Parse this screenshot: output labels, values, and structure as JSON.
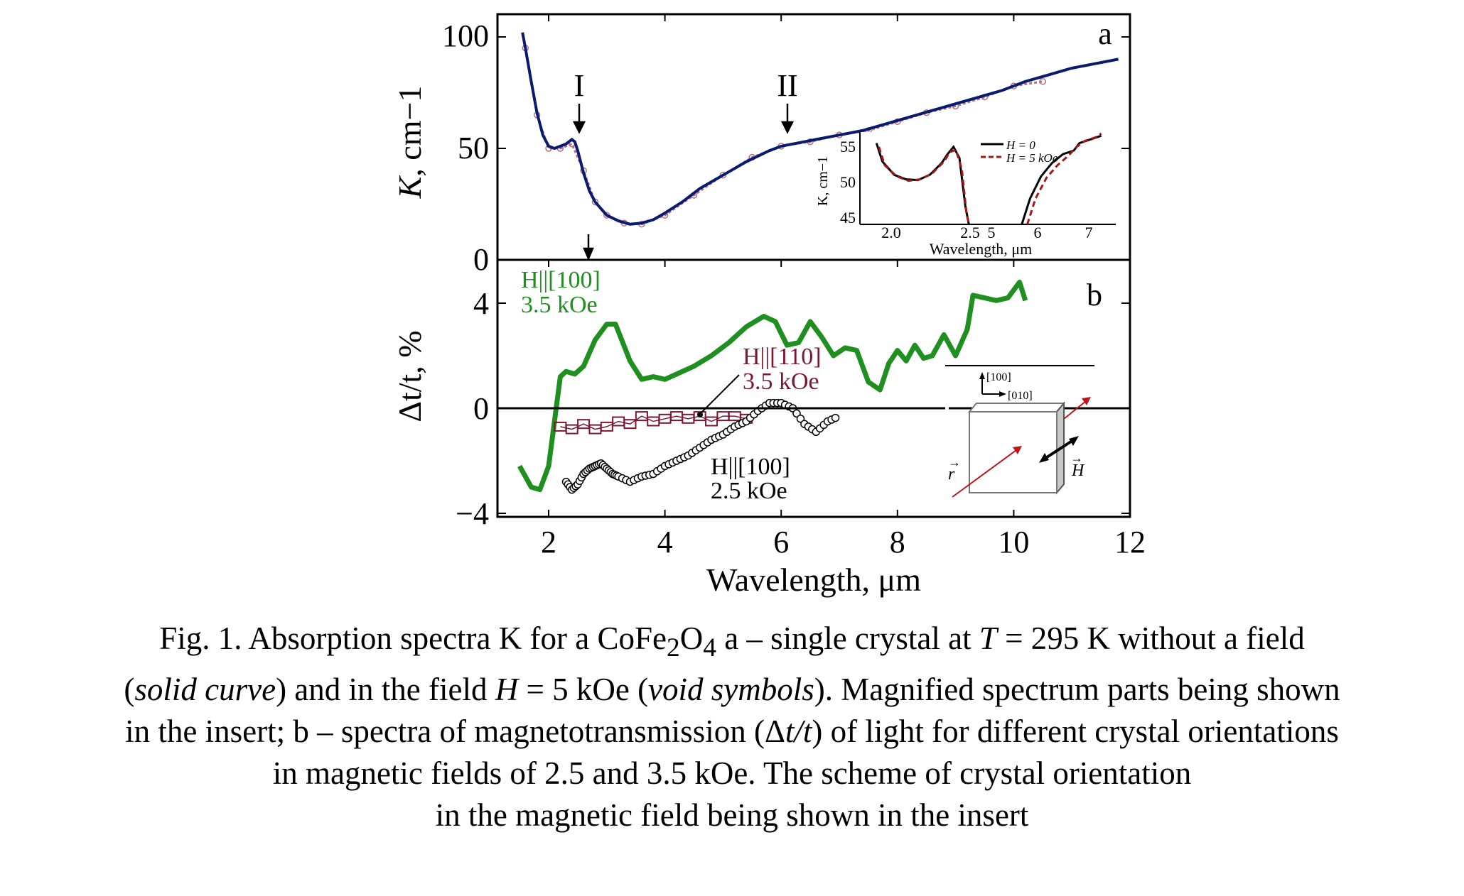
{
  "colors": {
    "axis": "#000000",
    "absorption": "#0a1a6e",
    "absorption_h": "#b07080",
    "green": "#1f8f1f",
    "maroon": "#7b1830",
    "open_black": "#000000",
    "inset_dash": "#a01818",
    "arrow_red": "#c0141c"
  },
  "chart_data": [
    {
      "panel": "a",
      "type": "line",
      "xlabel": "",
      "ylabel": "K, cm−1",
      "xlim": [
        1.0,
        12.0
      ],
      "ylim": [
        0,
        110
      ],
      "yticks": [
        "0",
        "50",
        "100"
      ],
      "grid": false,
      "annotations": [
        {
          "text": "I",
          "x": 2.45,
          "y": 53
        },
        {
          "text": "II",
          "x": 6.05,
          "y": 52
        }
      ],
      "series": [
        {
          "style": "solid",
          "x": [
            1.55,
            1.6,
            1.7,
            1.8,
            1.9,
            2.0,
            2.1,
            2.2,
            2.3,
            2.4,
            2.45,
            2.5,
            2.6,
            2.7,
            2.8,
            2.9,
            3.0,
            3.2,
            3.4,
            3.6,
            3.8,
            4.0,
            4.3,
            4.6,
            5.0,
            5.4,
            5.8,
            6.0,
            6.3,
            6.6,
            7.0,
            7.4,
            7.8,
            8.2,
            8.6,
            9.0,
            9.4,
            9.8,
            10.2,
            10.6,
            11.0,
            11.4,
            11.8
          ],
          "y": [
            102,
            95,
            80,
            66,
            56,
            51,
            50,
            51,
            52,
            54,
            53,
            49,
            39,
            31,
            26,
            23,
            20,
            17.5,
            16,
            16.5,
            18,
            21,
            26,
            32,
            38,
            44,
            49,
            51,
            52.5,
            54,
            56,
            58,
            61,
            64,
            67,
            70,
            73,
            76,
            80,
            83,
            86,
            88,
            90
          ]
        },
        {
          "style": "open-symbols",
          "x": [
            1.6,
            1.8,
            2.0,
            2.2,
            2.4,
            2.6,
            2.8,
            3.0,
            3.3,
            3.6,
            4.0,
            4.5,
            5.0,
            5.5,
            6.0,
            6.5,
            7.0,
            7.5,
            8.0,
            8.5,
            9.0,
            9.5,
            10.0,
            10.5
          ],
          "y": [
            95,
            65,
            50,
            50,
            52,
            40,
            26,
            20,
            16.5,
            16,
            20,
            29,
            38,
            46,
            51,
            53,
            56,
            58,
            62,
            66,
            69,
            73,
            78,
            80
          ]
        }
      ],
      "inset": {
        "xlabel": "Wavelength, μm",
        "ylabel": "K, cm−1",
        "yticks": [
          "45",
          "50",
          "55"
        ],
        "ylim": [
          44.5,
          57
        ],
        "xticks_left": [
          "2.0",
          "2.5"
        ],
        "xticks_right": [
          "5",
          "6",
          "7"
        ],
        "legend": [
          "H = 0",
          "H = 5 kOe"
        ],
        "left": {
          "xlim": [
            1.7,
            2.6
          ],
          "h0": [
            [
              1.75,
              55.5
            ],
            [
              1.8,
              53
            ],
            [
              1.9,
              51.2
            ],
            [
              2.0,
              50.6
            ],
            [
              2.1,
              50.5
            ],
            [
              2.2,
              51.2
            ],
            [
              2.3,
              52.8
            ],
            [
              2.35,
              54
            ],
            [
              2.4,
              55
            ],
            [
              2.45,
              53.5
            ],
            [
              2.5,
              47
            ],
            [
              2.53,
              44.5
            ]
          ],
          "h5": [
            [
              1.77,
              55
            ],
            [
              1.82,
              52.5
            ],
            [
              1.92,
              51
            ],
            [
              2.02,
              50.4
            ],
            [
              2.12,
              50.6
            ],
            [
              2.22,
              51.4
            ],
            [
              2.32,
              53
            ],
            [
              2.37,
              54.3
            ],
            [
              2.42,
              54.6
            ],
            [
              2.47,
              52
            ],
            [
              2.51,
              46
            ],
            [
              2.53,
              44.5
            ]
          ]
        },
        "right": {
          "xlim": [
            5.0,
            7.4
          ],
          "h0": [
            [
              5.75,
              44.5
            ],
            [
              5.9,
              48
            ],
            [
              6.1,
              51
            ],
            [
              6.3,
              52.8
            ],
            [
              6.5,
              54
            ],
            [
              6.7,
              54.5
            ],
            [
              6.8,
              55.5
            ],
            [
              7.0,
              56
            ],
            [
              7.2,
              56.5
            ]
          ],
          "h5": [
            [
              5.85,
              44.5
            ],
            [
              6.0,
              48
            ],
            [
              6.2,
              50.8
            ],
            [
              6.4,
              52.5
            ],
            [
              6.6,
              53.8
            ],
            [
              6.75,
              55
            ],
            [
              6.9,
              55.8
            ],
            [
              7.1,
              56.3
            ],
            [
              7.2,
              56.8
            ]
          ]
        }
      }
    },
    {
      "panel": "b",
      "type": "line",
      "xlabel": "Wavelength, μm",
      "ylabel": "Δt/t, %",
      "xlim": [
        1.0,
        12.0
      ],
      "ylim": [
        -4.5,
        5.7
      ],
      "xticks": [
        "2",
        "4",
        "6",
        "8",
        "10",
        "12"
      ],
      "yticks": [
        "−4",
        "0",
        "4"
      ],
      "grid": false,
      "series": [
        {
          "name": "H||[100] 3.5 kOe",
          "x": [
            1.5,
            1.7,
            1.85,
            2.0,
            2.1,
            2.2,
            2.3,
            2.45,
            2.6,
            2.8,
            3.0,
            3.15,
            3.4,
            3.6,
            3.8,
            4.0,
            4.2,
            4.5,
            4.8,
            5.1,
            5.4,
            5.7,
            5.9,
            6.1,
            6.3,
            6.5,
            6.7,
            6.9,
            7.1,
            7.3,
            7.5,
            7.7,
            7.85,
            8.0,
            8.15,
            8.3,
            8.45,
            8.6,
            8.8,
            9.0,
            9.2,
            9.3,
            9.5,
            9.7,
            9.9,
            10.1,
            10.2
          ],
          "y": [
            -2.2,
            -3.0,
            -3.1,
            -2.2,
            -0.5,
            1.2,
            1.4,
            1.3,
            1.6,
            2.6,
            3.2,
            3.2,
            1.8,
            1.1,
            1.2,
            1.1,
            1.3,
            1.6,
            2.0,
            2.5,
            3.1,
            3.5,
            3.3,
            2.4,
            2.5,
            3.3,
            2.7,
            2.0,
            2.3,
            2.2,
            1.0,
            0.7,
            1.7,
            2.2,
            1.8,
            2.4,
            1.9,
            2.0,
            2.8,
            2.0,
            3.0,
            4.3,
            4.2,
            4.1,
            4.2,
            4.8,
            4.1
          ]
        },
        {
          "name": "H||[110] 3.5 kOe",
          "x": [
            2.2,
            2.4,
            2.6,
            2.8,
            3.0,
            3.2,
            3.4,
            3.6,
            3.8,
            4.0,
            4.2,
            4.4,
            4.6,
            4.8,
            5.0,
            5.2,
            5.4
          ],
          "y": [
            -0.7,
            -0.8,
            -0.6,
            -0.8,
            -0.7,
            -0.5,
            -0.6,
            -0.3,
            -0.5,
            -0.4,
            -0.3,
            -0.4,
            -0.3,
            -0.5,
            -0.3,
            -0.3,
            -0.4
          ]
        },
        {
          "name": "H||[100] 2.5 kOe",
          "x": [
            2.3,
            2.4,
            2.5,
            2.6,
            2.7,
            2.8,
            2.9,
            3.0,
            3.1,
            3.2,
            3.4,
            3.6,
            3.8,
            4.0,
            4.2,
            4.4,
            4.6,
            4.8,
            5.0,
            5.2,
            5.4,
            5.6,
            5.8,
            6.0,
            6.2,
            6.4,
            6.6,
            6.8,
            7.0
          ],
          "y": [
            -2.8,
            -3.1,
            -2.9,
            -2.5,
            -2.3,
            -2.2,
            -2.1,
            -2.3,
            -2.5,
            -2.6,
            -2.8,
            -2.6,
            -2.5,
            -2.2,
            -2.0,
            -1.8,
            -1.5,
            -1.2,
            -1.0,
            -0.7,
            -0.5,
            -0.1,
            0.2,
            0.2,
            0.0,
            -0.6,
            -0.9,
            -0.5,
            -0.3
          ]
        }
      ],
      "annotations": [
        {
          "text": "b"
        }
      ],
      "scheme": {
        "axis_up": "[100]",
        "axis_right": "[010]",
        "label_r": "r",
        "label_H": "H"
      }
    }
  ],
  "panel_labels": {
    "a": "a",
    "b": "b",
    "peak1": "I",
    "peak2": "II"
  },
  "legend_b": {
    "g1": "H||[100]",
    "g2": "3.5 kOe",
    "m1": "H||[110]",
    "m2": "3.5 kOe",
    "k1": "H||[100]",
    "k2": "2.5 kOe"
  },
  "caption": {
    "l1a": "Fig. 1. Absorption spectra K for a CoFe",
    "l1b": "2",
    "l1c": "O",
    "l1d": "4",
    "l1e": " a –  single crystal at ",
    "l1f": "T",
    "l1g": " = 295 K without a field",
    "l2a": "(",
    "l2b": "solid curve",
    "l2c": ") and in the field ",
    "l2d": "H",
    "l2e": " = 5 kOe (",
    "l2f": "void symbols",
    "l2g": "). Magnified spectrum parts being shown",
    "l3a": "in the insert; b – spectra of magnetotransmission (Δ",
    "l3b": "t/t",
    "l3c": ") of light for different crystal orientations",
    "l4": "in magnetic fields of 2.5 and 3.5 kOe. The scheme of crystal orientation",
    "l5": "in the magnetic field being shown in the insert"
  }
}
